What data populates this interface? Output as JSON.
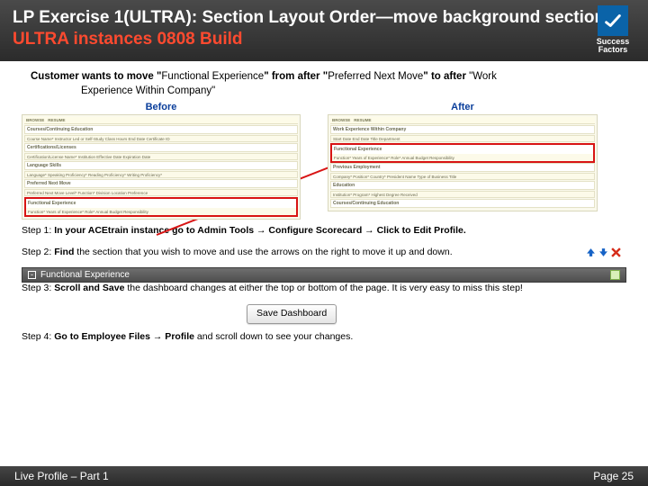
{
  "header": {
    "title_white": "LP Exercise 1(ULTRA): Section Layout Order—move background section – ",
    "title_red": "ULTRA instances 0808 Build",
    "logo_line1": "Success",
    "logo_line2": "Factors"
  },
  "customer_line1_bold1": "Customer wants to move \"",
  "customer_line1_mid": "Functional Experience",
  "customer_line1_bold2": "\" from after \"",
  "customer_line1_mid2": "Preferred Next Move",
  "customer_line1_bold3": "\" to after ",
  "customer_line1_tail": "\"Work",
  "customer_line2": "Experience Within Company\"",
  "labels": {
    "before": "Before",
    "after": "After"
  },
  "before_mock": {
    "rows": [
      "Courses/Continuing Education",
      "Course Name*   Instructor Led or Self-Study   Class Hours   End Date   Certificate ID",
      "Certifications/Licenses",
      "Certification/License Name*   Institution   Effective Date   Expiration Date",
      "Language Skills",
      "Language*   Speaking Proficiency*   Reading Proficiency*   Writing Proficiency*",
      "Preferred Next Move",
      "Preferred Next Move   Level*   Function*   Division   Location Preference"
    ],
    "hl_rows": [
      "Functional Experience",
      "Function*   Years of Experience*   Role*   Annual Budget Responsibility"
    ]
  },
  "after_mock": {
    "top_rows": [
      "Work Experience Within Company",
      "Start Date   End Date   Title   Department"
    ],
    "hl_rows": [
      "Functional Experience",
      "Function*   Years of Experience*   Role*   Annual Budget Responsibility"
    ],
    "bottom_rows": [
      "Previous Employment",
      "Company*   Position*   Country*   President Name   Type of Business   Title",
      "Education",
      "Institution*   Program*   Highest Degree Received",
      "Courses/Continuing Education"
    ]
  },
  "steps": {
    "s1_a": "Step 1: ",
    "s1_b": "In your ACEtrain instance go to Admin Tools → Configure Scorecard → Click to Edit Profile.",
    "s2_a": "Step 2: ",
    "s2_b": "Find",
    "s2_c": " the section that you wish to move and use the arrows on the right to move it up and down.",
    "fx_label": "Functional Experience",
    "s3_a": "Step 3: ",
    "s3_b": "Scroll and Save ",
    "s3_c": " the dashboard changes at either the top or bottom of the page.  It is very easy to miss this step!",
    "save_btn": "Save Dashboard",
    "s4_a": "Step 4: ",
    "s4_b": "Go to Employee Files → Profile ",
    "s4_c": " and scroll down to see your changes."
  },
  "footer": {
    "left": "Live Profile – Part 1",
    "right": "Page 25"
  },
  "colors": {
    "highlight_border": "#d81414",
    "arrow": "#d81414",
    "up_icon": "#1763c6",
    "down_icon": "#1763c6",
    "delete_icon": "#d62c1a"
  }
}
